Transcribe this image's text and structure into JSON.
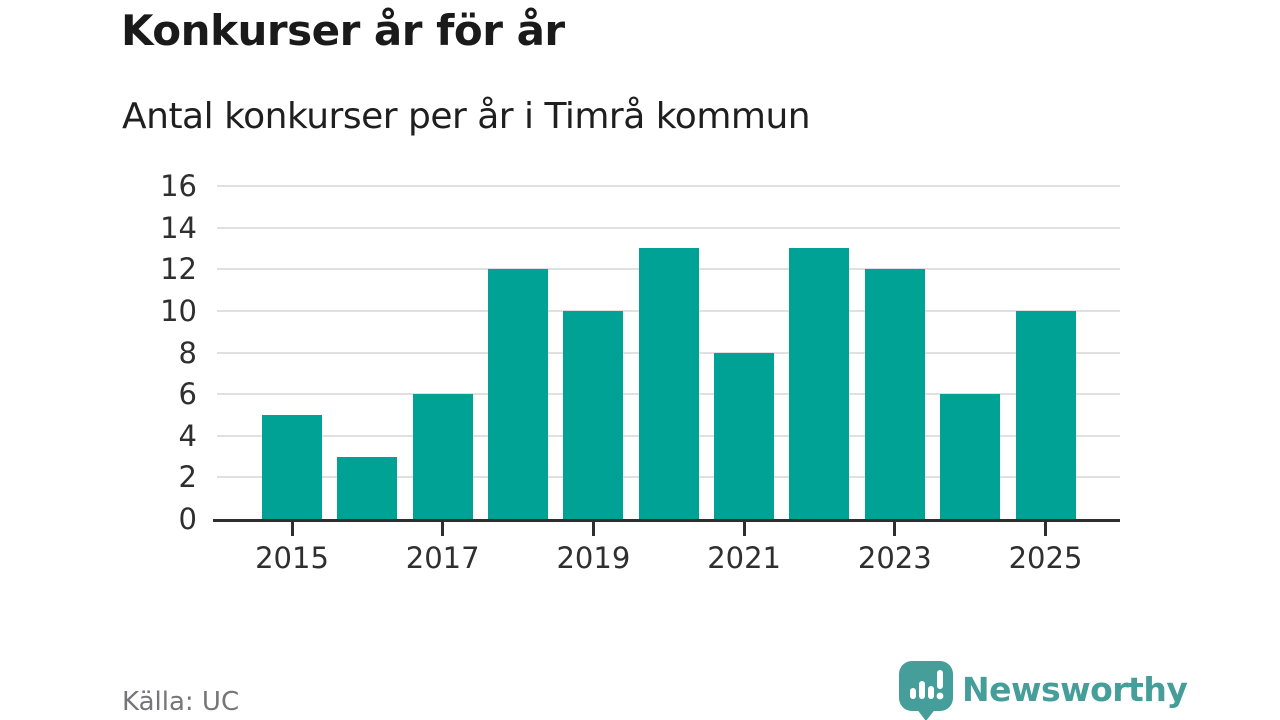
{
  "page": {
    "title": "Konkurser år för år",
    "subtitle": "Antal konkurser per år i Timrå kommun",
    "source_label": "Källa: UC",
    "brand": {
      "name": "Newsworthy",
      "icon": "bar-chart-speech-bubble-icon"
    }
  },
  "colors": {
    "bar": "#00a296",
    "axis": "#2f2d2e",
    "gridline": "#e0e0e0",
    "title_text": "#1a1a1a",
    "tick_text": "#2f2f2f",
    "source_text": "#75757a",
    "brand_teal": "#459e99"
  },
  "chart_data": {
    "type": "bar",
    "title": "Konkurser år för år",
    "subtitle": "Antal konkurser per år i Timrå kommun",
    "categories": [
      "2015",
      "2016",
      "2017",
      "2018",
      "2019",
      "2020",
      "2021",
      "2022",
      "2023",
      "2024",
      "2025"
    ],
    "values": [
      5,
      3,
      6,
      12,
      10,
      13,
      8,
      13,
      12,
      6,
      10
    ],
    "xlabel": "",
    "ylabel": "",
    "ylim": [
      0,
      16
    ],
    "yticks": [
      0,
      2,
      4,
      6,
      8,
      10,
      12,
      14,
      16
    ],
    "xtick_labels": [
      "2015",
      "2017",
      "2019",
      "2021",
      "2023",
      "2025"
    ],
    "grid": "horizontal",
    "legend": "none",
    "source": "Källa: UC"
  }
}
